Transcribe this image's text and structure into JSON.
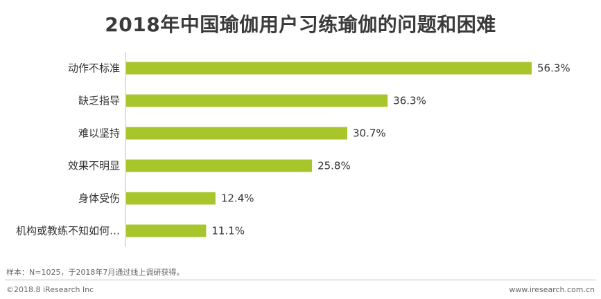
{
  "chart_data": {
    "type": "bar",
    "orientation": "horizontal",
    "title": "2018年中国瑜伽用户习练瑜伽的问题和困难",
    "categories": [
      "动作不标准",
      "缺乏指导",
      "难以坚持",
      "效果不明显",
      "身体受伤",
      "机构或教练不知如何…"
    ],
    "values": [
      56.3,
      36.3,
      30.7,
      25.8,
      12.4,
      11.1
    ],
    "value_labels": [
      "56.3%",
      "36.3%",
      "30.7%",
      "25.8%",
      "12.4%",
      "11.1%"
    ],
    "value_unit": "%",
    "xlim": [
      0,
      60
    ],
    "grid": false,
    "legend": "none",
    "bar_color": "#a8c62b",
    "axis_color": "#bfbfbf"
  },
  "note": "样本：N=1025，于2018年7月通过线上调研获得。",
  "footer": {
    "copyright": "©2018.8 iResearch Inc",
    "website": "www.iresearch.com.cn"
  }
}
